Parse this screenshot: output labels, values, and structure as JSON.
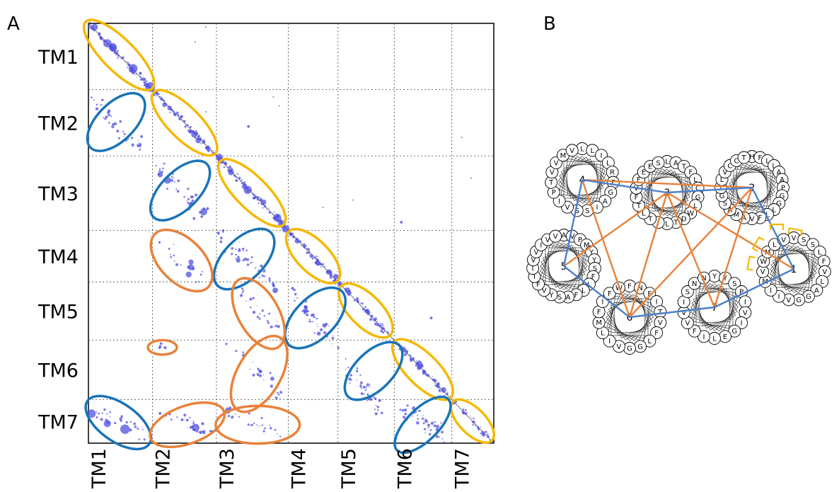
{
  "panels": {
    "a": {
      "letter": "A"
    },
    "b": {
      "letter": "B"
    }
  },
  "colors": {
    "diagonal_groups": "#f5b800",
    "antiparallel_groups": "#1a74b8",
    "parallel_groups": "#e8823a",
    "contact_points": "#5050e0",
    "contact_edges_blue": "#4a7fcc",
    "contact_edges_orange": "#e8823a",
    "bracket_marks": "#f5b800"
  },
  "chart_data": {
    "type": "scatter",
    "title": "",
    "xlabel": "",
    "ylabel": "",
    "segments": [
      "TM1",
      "TM2",
      "TM3",
      "TM4",
      "TM5",
      "TM6",
      "TM7"
    ],
    "segment_bounds": [
      0,
      90,
      180,
      281,
      351,
      430,
      511,
      570
    ],
    "xlim": [
      0,
      570
    ],
    "ylim": [
      0,
      570
    ],
    "y_direction": "top-to-bottom",
    "grid": true,
    "diagonal_line": true,
    "groups": [
      {
        "color": "diagonal_groups",
        "center": [
          43,
          43
        ],
        "axes": [
          65,
          22
        ],
        "angle": 45
      },
      {
        "color": "diagonal_groups",
        "center": [
          135,
          135
        ],
        "axes": [
          60,
          22
        ],
        "angle": 45
      },
      {
        "color": "diagonal_groups",
        "center": [
          230,
          230
        ],
        "axes": [
          62,
          22
        ],
        "angle": 45
      },
      {
        "color": "diagonal_groups",
        "center": [
          316,
          316
        ],
        "axes": [
          48,
          22
        ],
        "angle": 45
      },
      {
        "color": "diagonal_groups",
        "center": [
          390,
          390
        ],
        "axes": [
          48,
          22
        ],
        "angle": 45
      },
      {
        "color": "diagonal_groups",
        "center": [
          470,
          470
        ],
        "axes": [
          55,
          22
        ],
        "angle": 45
      },
      {
        "color": "diagonal_groups",
        "center": [
          540,
          540
        ],
        "axes": [
          38,
          18
        ],
        "angle": 45
      },
      {
        "color": "antiparallel_groups",
        "center": [
          39,
          134
        ],
        "axes": [
          50,
          26
        ],
        "angle": -45
      },
      {
        "color": "antiparallel_groups",
        "center": [
          129,
          227
        ],
        "axes": [
          52,
          26
        ],
        "angle": -45
      },
      {
        "color": "antiparallel_groups",
        "center": [
          219,
          320
        ],
        "axes": [
          52,
          28
        ],
        "angle": -45
      },
      {
        "color": "antiparallel_groups",
        "center": [
          319,
          400
        ],
        "axes": [
          52,
          28
        ],
        "angle": -45
      },
      {
        "color": "antiparallel_groups",
        "center": [
          401,
          472
        ],
        "axes": [
          50,
          26
        ],
        "angle": -45
      },
      {
        "color": "antiparallel_groups",
        "center": [
          470,
          545
        ],
        "axes": [
          50,
          22
        ],
        "angle": -45
      },
      {
        "color": "antiparallel_groups",
        "center": [
          42,
          542
        ],
        "axes": [
          52,
          26
        ],
        "angle": 35
      },
      {
        "color": "parallel_groups",
        "center": [
          131,
          322
        ],
        "axes": [
          52,
          30
        ],
        "angle": 45
      },
      {
        "color": "parallel_groups",
        "center": [
          239,
          394
        ],
        "axes": [
          54,
          28
        ],
        "angle": 60
      },
      {
        "color": "parallel_groups",
        "center": [
          240,
          476
        ],
        "axes": [
          58,
          30
        ],
        "angle": -60
      },
      {
        "color": "parallel_groups",
        "center": [
          104,
          440
        ],
        "axes": [
          20,
          10
        ],
        "angle": 0
      },
      {
        "color": "parallel_groups",
        "center": [
          139,
          545
        ],
        "axes": [
          54,
          26
        ],
        "angle": -20
      },
      {
        "color": "parallel_groups",
        "center": [
          238,
          545
        ],
        "axes": [
          58,
          26
        ],
        "angle": 0
      }
    ],
    "clusters": [
      {
        "x": [
          2,
          88
        ],
        "y": [
          2,
          88
        ],
        "band": 8,
        "count": 85,
        "max_r": 7
      },
      {
        "x": [
          92,
          178
        ],
        "y": [
          92,
          178
        ],
        "band": 8,
        "count": 80,
        "max_r": 4
      },
      {
        "x": [
          182,
          279
        ],
        "y": [
          182,
          279
        ],
        "band": 8,
        "count": 80,
        "max_r": 6
      },
      {
        "x": [
          283,
          349
        ],
        "y": [
          283,
          349
        ],
        "band": 8,
        "count": 60,
        "max_r": 4
      },
      {
        "x": [
          353,
          428
        ],
        "y": [
          353,
          428
        ],
        "band": 8,
        "count": 60,
        "max_r": 4
      },
      {
        "x": [
          432,
          509
        ],
        "y": [
          432,
          509
        ],
        "band": 8,
        "count": 60,
        "max_r": 4
      },
      {
        "x": [
          513,
          568
        ],
        "y": [
          513,
          568
        ],
        "band": 8,
        "count": 40,
        "max_r": 3
      },
      {
        "x": [
          5,
          75
        ],
        "y": [
          105,
          170
        ],
        "band": 22,
        "count": 40,
        "max_r": 3
      },
      {
        "x": [
          95,
          170
        ],
        "y": [
          190,
          270
        ],
        "band": 24,
        "count": 40,
        "max_r": 5
      },
      {
        "x": [
          95,
          160
        ],
        "y": [
          290,
          350
        ],
        "band": 22,
        "count": 20,
        "max_r": 6
      },
      {
        "x": [
          185,
          265
        ],
        "y": [
          290,
          355
        ],
        "band": 24,
        "count": 45,
        "max_r": 4
      },
      {
        "x": [
          215,
          270
        ],
        "y": [
          365,
          420
        ],
        "band": 20,
        "count": 25,
        "max_r": 3
      },
      {
        "x": [
          285,
          345
        ],
        "y": [
          360,
          440
        ],
        "band": 22,
        "count": 40,
        "max_r": 3
      },
      {
        "x": [
          200,
          275
        ],
        "y": [
          430,
          510
        ],
        "band": 24,
        "count": 25,
        "max_r": 3
      },
      {
        "x": [
          360,
          410
        ],
        "y": [
          460,
          525
        ],
        "band": 22,
        "count": 45,
        "max_r": 3
      },
      {
        "x": [
          440,
          500
        ],
        "y": [
          520,
          560
        ],
        "band": 22,
        "count": 45,
        "max_r": 3
      },
      {
        "x": [
          8,
          80
        ],
        "y": [
          525,
          560
        ],
        "band": 18,
        "count": 30,
        "max_r": 7
      },
      {
        "x": [
          100,
          175
        ],
        "y": [
          525,
          560
        ],
        "band": 18,
        "count": 30,
        "max_r": 6
      },
      {
        "x": [
          195,
          275
        ],
        "y": [
          525,
          560
        ],
        "band": 18,
        "count": 25,
        "max_r": 6
      },
      {
        "x": [
          92,
          110
        ],
        "y": [
          432,
          445
        ],
        "band": 8,
        "count": 5,
        "max_r": 2
      }
    ],
    "sparse_points": [
      {
        "x": 165,
        "y": 120,
        "r": 1
      },
      {
        "x": 260,
        "y": 100,
        "r": 1
      },
      {
        "x": 225,
        "y": 140,
        "r": 2
      },
      {
        "x": 525,
        "y": 155,
        "r": 1
      },
      {
        "x": 538,
        "y": 210,
        "r": 1
      },
      {
        "x": 372,
        "y": 240,
        "r": 1
      },
      {
        "x": 440,
        "y": 270,
        "r": 2
      },
      {
        "x": 482,
        "y": 400,
        "r": 2
      },
      {
        "x": 150,
        "y": 25,
        "r": 1
      },
      {
        "x": 165,
        "y": 5,
        "r": 1
      },
      {
        "x": 330,
        "y": 250,
        "r": 1
      },
      {
        "x": 268,
        "y": 112,
        "r": 1
      }
    ]
  },
  "helical_wheel": {
    "helices": [
      {
        "number": "1",
        "residues": [
          "V",
          "S",
          "S",
          "L",
          "F",
          "V",
          "L",
          "A",
          "G",
          "G",
          "V",
          "I",
          "I",
          "M",
          "V",
          "W",
          "M",
          "L",
          "V"
        ]
      },
      {
        "number": "2",
        "residues": [
          "H",
          "F",
          "L",
          "L",
          "A",
          "A",
          "P",
          "G",
          "G",
          "L",
          "L",
          "F",
          "V",
          "A",
          "M",
          "A",
          "S",
          "G",
          "I",
          "L",
          "V",
          "C",
          "C",
          "T"
        ]
      },
      {
        "number": "3",
        "residues": [
          "L",
          "A",
          "T",
          "F",
          "L",
          "C",
          "G",
          "L",
          "W",
          "D",
          "T",
          "L",
          "I",
          "T",
          "L",
          "T",
          "F",
          "V",
          "F",
          "E",
          "E",
          "S"
        ]
      },
      {
        "number": "4",
        "residues": [
          "L",
          "L",
          "I",
          "L",
          "R",
          "F",
          "G",
          "A",
          "I",
          "S",
          "S",
          "V",
          "I",
          "P",
          "T",
          "V",
          "V",
          "M",
          "V"
        ]
      },
      {
        "number": "5",
        "residues": [
          "A",
          "V",
          "P",
          "M",
          "Y",
          "Y",
          "S",
          "F",
          "L",
          "L",
          "F",
          "A",
          "S",
          "Y",
          "V",
          "F",
          "I",
          "I",
          "V",
          "V",
          "I",
          "V",
          "V"
        ]
      },
      {
        "number": "6",
        "residues": [
          "F",
          "N",
          "F",
          "I",
          "T",
          "V",
          "F",
          "L",
          "G",
          "G",
          "V",
          "I",
          "L",
          "M",
          "F",
          "I",
          "F",
          "W"
        ]
      },
      {
        "number": "7",
        "residues": [
          "Y",
          "Y",
          "S",
          "P",
          "I",
          "V",
          "I",
          "G",
          "E",
          "L",
          "I",
          "F",
          "V",
          "V",
          "I",
          "S",
          "N",
          "N"
        ]
      }
    ],
    "blue_edges": [
      [
        "4",
        "3"
      ],
      [
        "3",
        "2"
      ],
      [
        "4",
        "5"
      ],
      [
        "5",
        "6"
      ],
      [
        "6",
        "7"
      ],
      [
        "7",
        "1"
      ],
      [
        "2",
        "1"
      ]
    ],
    "orange_edges": [
      [
        "4",
        "2"
      ],
      [
        "3",
        "6"
      ],
      [
        "3",
        "7"
      ],
      [
        "3",
        "5"
      ],
      [
        "2",
        "6"
      ],
      [
        "2",
        "7"
      ],
      [
        "4",
        "6"
      ],
      [
        "3",
        "1"
      ]
    ]
  }
}
